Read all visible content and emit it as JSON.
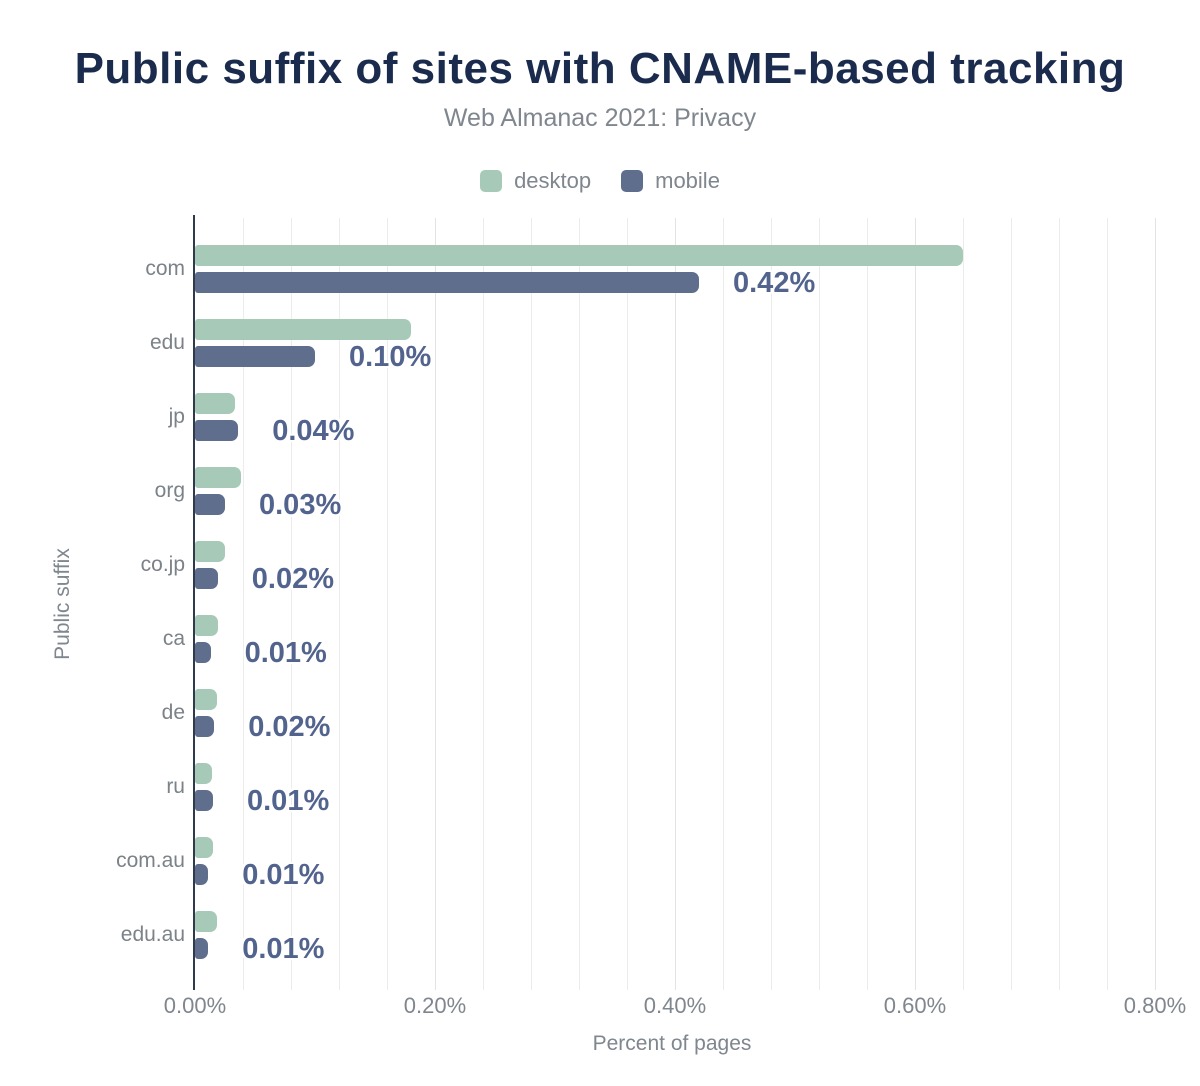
{
  "chart_data": {
    "type": "bar",
    "orientation": "horizontal",
    "title": "Public suffix of sites with CNAME-based tracking",
    "subtitle": "Web Almanac 2021: Privacy",
    "xlabel": "Percent of pages",
    "ylabel": "Public suffix",
    "categories": [
      "com",
      "edu",
      "jp",
      "org",
      "co.jp",
      "ca",
      "de",
      "ru",
      "com.au",
      "edu.au"
    ],
    "series": [
      {
        "name": "desktop",
        "color": "#a7c9b8",
        "values": [
          0.64,
          0.18,
          0.033,
          0.038,
          0.025,
          0.019,
          0.018,
          0.014,
          0.015,
          0.018
        ]
      },
      {
        "name": "mobile",
        "color": "#5f6e8c",
        "values": [
          0.42,
          0.1,
          0.036,
          0.025,
          0.019,
          0.013,
          0.016,
          0.015,
          0.011,
          0.011
        ]
      }
    ],
    "value_labels": [
      "0.42%",
      "0.10%",
      "0.04%",
      "0.03%",
      "0.02%",
      "0.01%",
      "0.02%",
      "0.01%",
      "0.01%",
      "0.01%"
    ],
    "value_labels_series": "mobile",
    "x_ticks": [
      {
        "value": 0.0,
        "label": "0.00%"
      },
      {
        "value": 0.2,
        "label": "0.20%"
      },
      {
        "value": 0.4,
        "label": "0.40%"
      },
      {
        "value": 0.6,
        "label": "0.60%"
      },
      {
        "value": 0.8,
        "label": "0.80%"
      }
    ],
    "xlim": [
      0,
      0.84
    ],
    "grid": {
      "on": true,
      "minor_step_percent": 0.04,
      "color": "#ececec"
    },
    "legend_position": "top",
    "colors": {
      "title": "#1a2b4e",
      "axis_line": "#2f3a4d",
      "text_muted": "#7f868e",
      "value_label": "#52648e"
    }
  }
}
